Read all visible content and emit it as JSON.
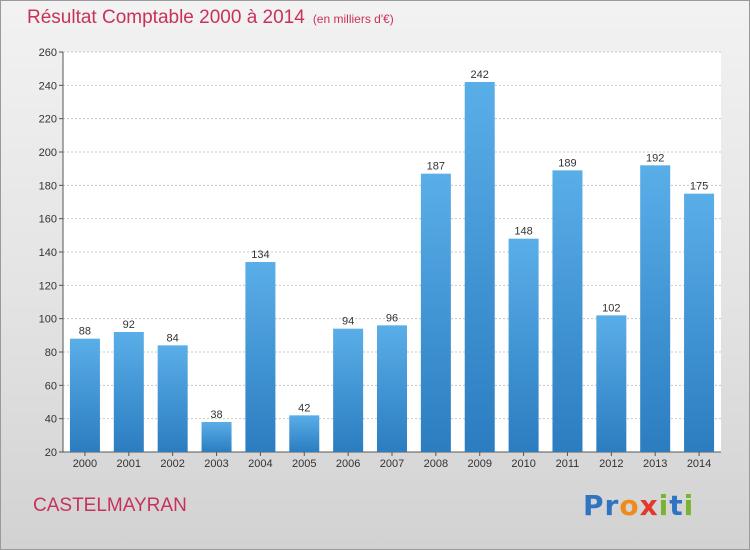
{
  "title": "Résultat Comptable 2000 à 2014",
  "subtitle": "(en milliers d'€)",
  "footer_name": "CASTELMAYRAN",
  "brand": {
    "letters": [
      "P",
      "r",
      "o",
      "x",
      "i",
      "t",
      "i"
    ]
  },
  "colors": {
    "bar_top": "#5aaee8",
    "bar_bottom": "#2b7dc0",
    "title": "#c8325a",
    "brand": [
      "#2e74c0",
      "#2e74c0",
      "#f08a1c",
      "#e23a2a",
      "#7ab32e",
      "#2e74c0",
      "#7ab32e"
    ]
  },
  "chart_data": {
    "type": "bar",
    "title": "Résultat Comptable 2000 à 2014",
    "ylabel": "en milliers d'€",
    "xlabel": "",
    "ylim": [
      20,
      260
    ],
    "y_ticks": [
      20,
      40,
      60,
      80,
      100,
      120,
      140,
      160,
      180,
      200,
      220,
      240,
      260
    ],
    "grid": true,
    "categories": [
      "2000",
      "2001",
      "2002",
      "2003",
      "2004",
      "2005",
      "2006",
      "2007",
      "2008",
      "2009",
      "2010",
      "2011",
      "2012",
      "2013",
      "2014"
    ],
    "values": [
      88,
      92,
      84,
      38,
      134,
      42,
      94,
      96,
      187,
      242,
      148,
      189,
      102,
      192,
      175
    ]
  }
}
